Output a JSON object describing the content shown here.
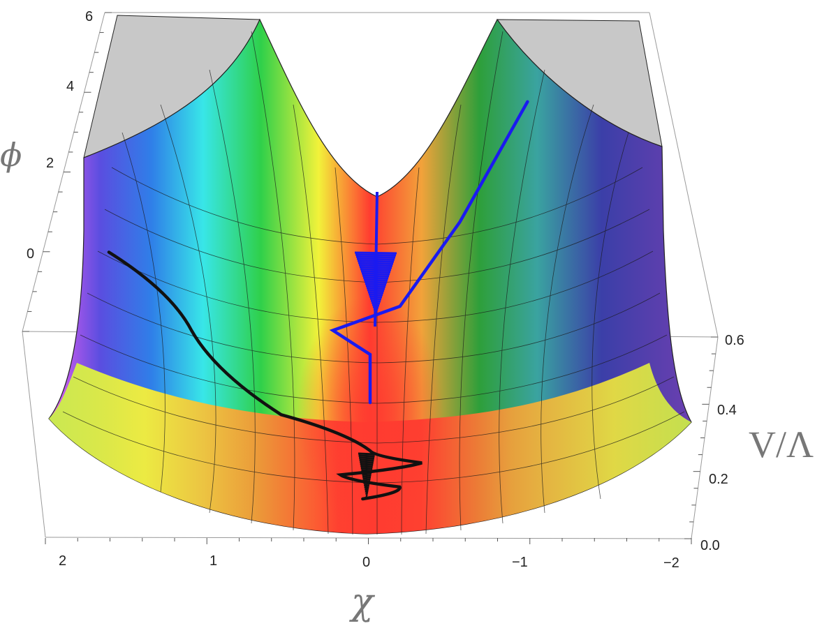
{
  "chart_data": {
    "type": "surface3d",
    "axes": {
      "chi": {
        "label": "χ",
        "range": [
          -2,
          2
        ],
        "ticks": [
          "2",
          "1",
          "0",
          "−1",
          "−2"
        ],
        "tick_values": [
          2,
          1,
          0,
          -1,
          -2
        ]
      },
      "phi": {
        "label": "ϕ",
        "range": [
          -2,
          6
        ],
        "ticks": [
          "0",
          "2",
          "4",
          "6"
        ],
        "tick_values": [
          0,
          2,
          4,
          6
        ]
      },
      "v": {
        "label": "V/Λ",
        "range": [
          0,
          0.6
        ],
        "ticks": [
          "0.0",
          "0.2",
          "0.4",
          "0.6"
        ],
        "tick_values": [
          0,
          0.2,
          0.4,
          0.6
        ]
      }
    },
    "surface": {
      "shape": "trough-shaped potential, minimum along chi = 0, rising toward |chi| = 2",
      "colormap": "rainbow",
      "mesh_lines": true,
      "clipped_top_color": "#c8c8c8"
    },
    "series": [
      {
        "color": "#111111",
        "points": [
          {
            "chi": 1.75,
            "phi": 2.1
          },
          {
            "chi": 1.2,
            "phi": 0.8
          },
          {
            "chi": 0.6,
            "phi": -0.6
          },
          {
            "chi": 0.0,
            "phi": -1.2
          },
          {
            "chi": -0.35,
            "phi": -1.4
          },
          {
            "chi": 0.2,
            "phi": -1.6
          },
          {
            "chi": -0.2,
            "phi": -1.8
          },
          {
            "chi": 0.05,
            "phi": -2.0
          }
        ]
      },
      {
        "color": "#1a1af0",
        "points": [
          {
            "chi": -1.05,
            "phi": 4.6
          },
          {
            "chi": -0.6,
            "phi": 2.6
          },
          {
            "chi": -0.2,
            "phi": 1.2
          },
          {
            "chi": 0.25,
            "phi": 0.8
          },
          {
            "chi": 0.0,
            "phi": 0.4
          },
          {
            "chi": 0.0,
            "phi": -0.4
          }
        ]
      }
    ]
  }
}
